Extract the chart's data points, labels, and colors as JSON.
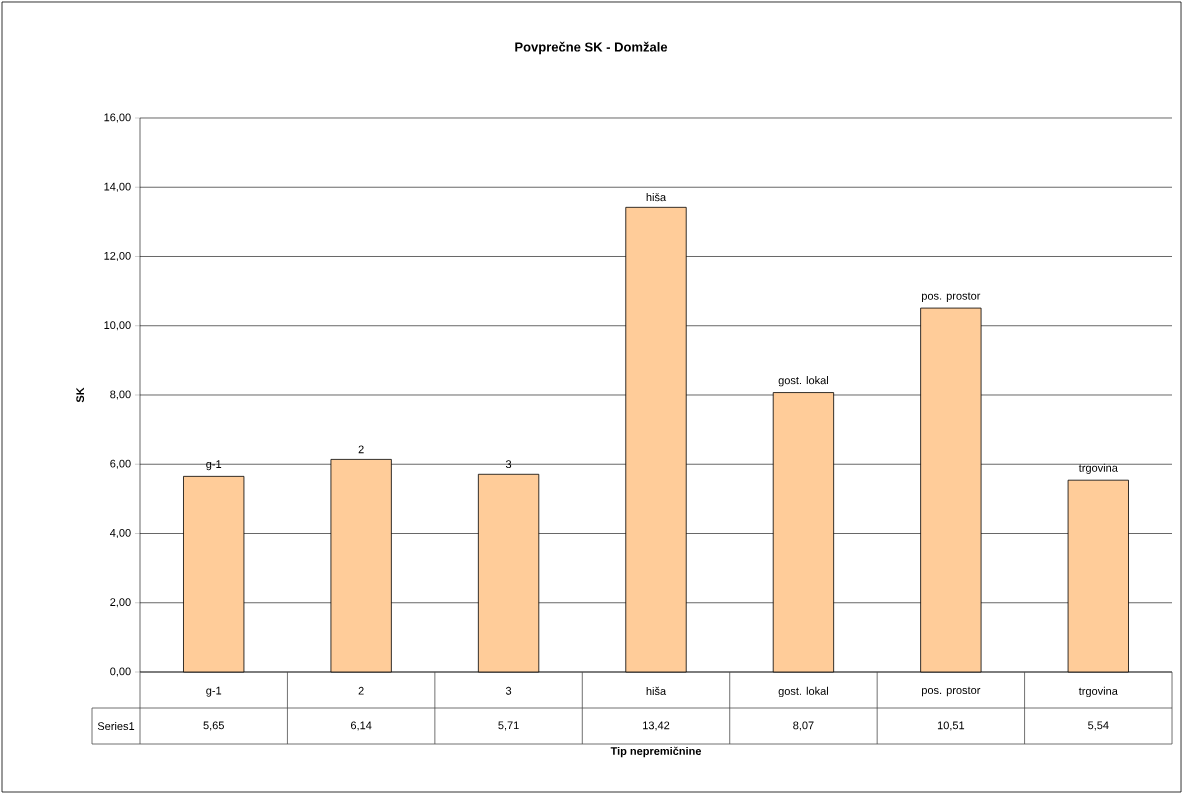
{
  "chart_data": {
    "type": "bar",
    "title": "Povprečne SK - Domžale",
    "xlabel": "Tip nepremičnine",
    "ylabel": "SK",
    "categories": [
      "g-1",
      "2",
      "3",
      "hiša",
      "gost. lokal",
      "pos. prostor",
      "trgovina"
    ],
    "series": [
      {
        "name": "Series1",
        "color": "#ffcc99",
        "values": [
          5.65,
          6.14,
          5.71,
          13.42,
          8.07,
          10.51,
          5.54
        ],
        "value_labels": [
          "5,65",
          "6,14",
          "5,71",
          "13,42",
          "8,07",
          "10,51",
          "5,54"
        ]
      }
    ],
    "annotations": [
      {
        "text": "g-1",
        "x": "g-1",
        "y": 5.65
      },
      {
        "text": "2",
        "x": "2",
        "y": 6.14
      },
      {
        "text": "3",
        "x": "3",
        "y": 5.71
      },
      {
        "text": "hiša",
        "x": "hiša",
        "y": 13.42
      },
      {
        "text": "gost. lokal",
        "x": "gost. lokal",
        "y": 8.07
      },
      {
        "text": "pos. prostor",
        "x": "pos. prostor",
        "y": 10.51
      },
      {
        "text": "trgovina",
        "x": "trgovina",
        "y": 5.54
      }
    ],
    "ylim": [
      0,
      16
    ],
    "yticks": [
      {
        "value": 0,
        "label": "0,00"
      },
      {
        "value": 2,
        "label": "2,00"
      },
      {
        "value": 4,
        "label": "4,00"
      },
      {
        "value": 6,
        "label": "6,00"
      },
      {
        "value": 8,
        "label": "8,00"
      },
      {
        "value": 10,
        "label": "10,00"
      },
      {
        "value": 12,
        "label": "12,00"
      },
      {
        "value": 14,
        "label": "14,00"
      },
      {
        "value": 16,
        "label": "16,00"
      }
    ],
    "grid": "y",
    "legend": false
  }
}
